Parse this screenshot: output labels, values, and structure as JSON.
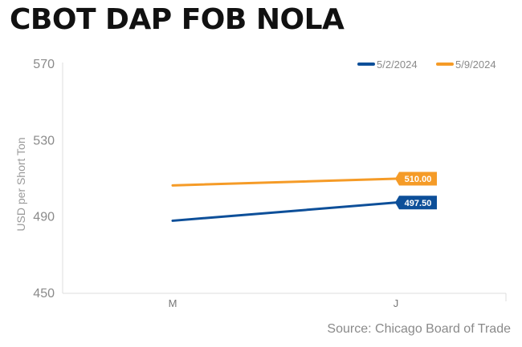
{
  "chart_data": {
    "type": "line",
    "title": "CBOT DAP FOB NOLA",
    "ylabel": "USD per Short Ton",
    "xlabel": "",
    "categories": [
      "M",
      "J"
    ],
    "ylim": [
      450,
      570
    ],
    "yticks": [
      "570",
      "530",
      "490",
      "450"
    ],
    "grid": false,
    "legend_placement": "top-right",
    "series": [
      {
        "name": "5/2/2024",
        "color": "#0d4f99",
        "values": [
          488.0,
          497.5
        ],
        "end_label": "497.50"
      },
      {
        "name": "5/9/2024",
        "color": "#f59b27",
        "values": [
          506.5,
          510.0
        ],
        "end_label": "510.00"
      }
    ],
    "source": "Source: Chicago Board of Trade"
  }
}
